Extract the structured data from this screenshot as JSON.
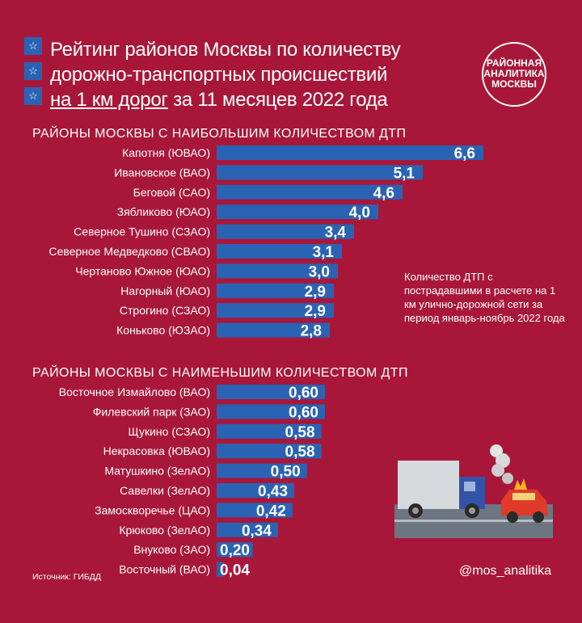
{
  "header": {
    "title_line1": "Рейтинг районов Москвы по количеству",
    "title_line2": "дорожно-транспортных происшествий",
    "title_line3_underlined": "на 1 км дорог",
    "title_line3_rest": " за 11 месяцев 2022 года",
    "logo_text": "РАЙОННАЯ АНАЛИТИКА МОСКВЫ"
  },
  "colors": {
    "background": "#a8173a",
    "bar": "#2a63b4",
    "text": "#ffffff"
  },
  "icons": [
    "star-icon",
    "truck-car-crash-illustration"
  ],
  "note": "Количество ДТП с пострадавшими в расчете на 1 км улично-дорожной сети за период январь-ноябрь 2022 года",
  "source": "Источник: ГИБДД",
  "handle": "@mos_analitika",
  "chart_data": [
    {
      "type": "bar",
      "orientation": "horizontal",
      "title": "РАЙОНЫ МОСКВЫ С НАИБОЛЬШИМ КОЛИЧЕСТВОМ ДТП",
      "categories": [
        "Капотня (ЮВАО)",
        "Ивановское (ВАО)",
        "Беговой (САО)",
        "Зябликово (ЮАО)",
        "Северное Тушино (СЗАО)",
        "Северное Медведково (СВАО)",
        "Чертаново Южное (ЮАО)",
        "Нагорный (ЮАО)",
        "Строгино (СЗАО)",
        "Коньково (ЮЗАО)"
      ],
      "values": [
        6.6,
        5.1,
        4.6,
        4.0,
        3.4,
        3.1,
        3.0,
        2.9,
        2.9,
        2.8
      ],
      "labels": [
        "6,6",
        "5,1",
        "4,6",
        "4,0",
        "3,4",
        "3,1",
        "3,0",
        "2,9",
        "2,9",
        "2,8"
      ],
      "xlim": [
        0,
        6.6
      ]
    },
    {
      "type": "bar",
      "orientation": "horizontal",
      "title": "РАЙОНЫ МОСКВЫ С НАИМЕНЬШИМ КОЛИЧЕСТВОМ ДТП",
      "categories": [
        "Восточное Измайлово (ВАО)",
        "Филевский парк (ЗАО)",
        "Щукино (СЗАО)",
        "Некрасовка (ЮВАО)",
        "Матушкино (ЗелАО)",
        "Савелки (ЗелАО)",
        "Замоскворечье (ЦАО)",
        "Крюково (ЗелАО)",
        "Внуково (ЗАО)",
        "Восточный (ВАО)"
      ],
      "values": [
        0.6,
        0.6,
        0.58,
        0.58,
        0.5,
        0.43,
        0.42,
        0.34,
        0.2,
        0.04
      ],
      "labels": [
        "0,60",
        "0,60",
        "0,58",
        "0,58",
        "0,50",
        "0,43",
        "0,42",
        "0,34",
        "0,20",
        "0,04"
      ],
      "xlim": [
        0,
        0.6
      ]
    }
  ]
}
